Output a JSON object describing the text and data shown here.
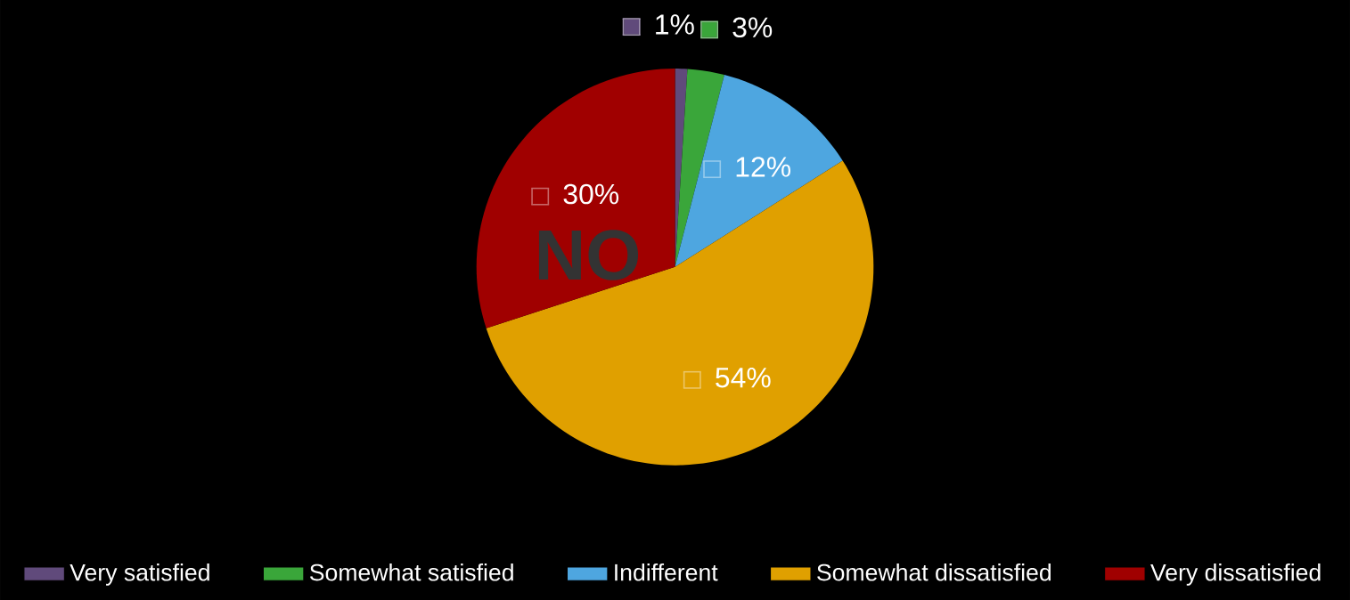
{
  "chart_data": {
    "type": "pie",
    "categories": [
      "Very satisfied",
      "Somewhat satisfied",
      "Indifferent",
      "Somewhat dissatisfied",
      "Very dissatisfied"
    ],
    "values": [
      1,
      3,
      12,
      54,
      30
    ],
    "colors": [
      "#604a7b",
      "#3aa63a",
      "#4ea6e0",
      "#e0a000",
      "#a00000"
    ],
    "value_labels": [
      "1%",
      "3%",
      "12%",
      "54%",
      "30%"
    ],
    "annotations": [
      "NO"
    ],
    "legend": "bottom"
  }
}
